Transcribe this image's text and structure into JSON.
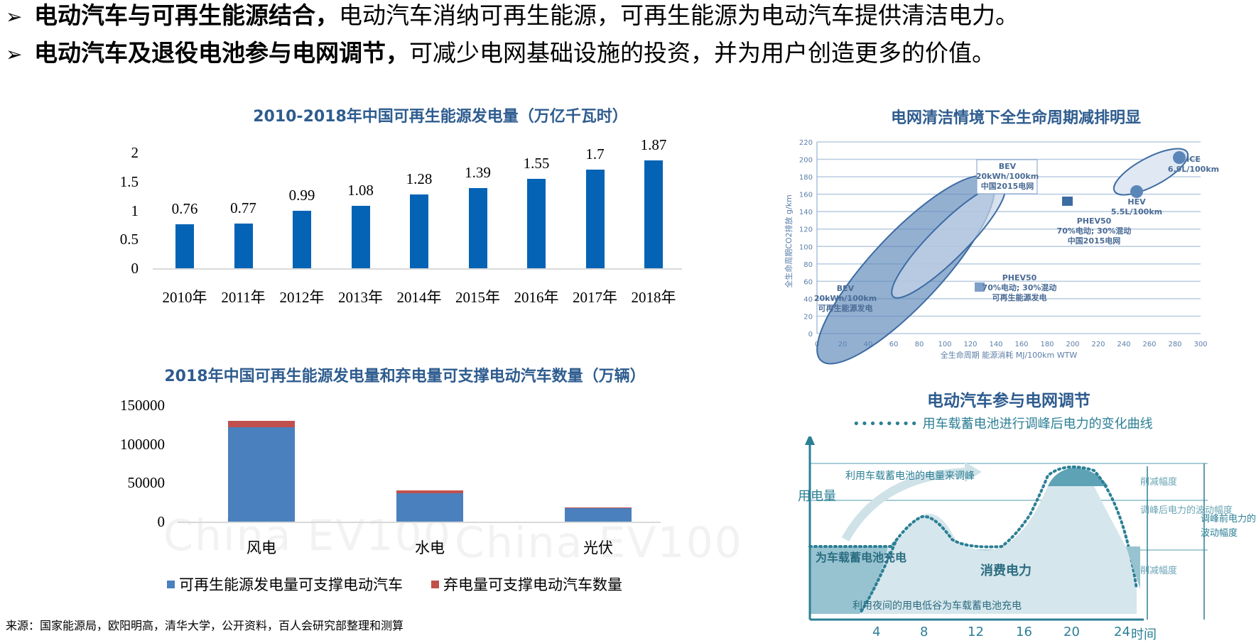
{
  "bullets": [
    {
      "bold": "电动汽车与可再生能源结合，",
      "text": "电动汽车消纳可再生能源，可再生能源为电动汽车提供清洁电力。",
      "marker": "➢"
    },
    {
      "bold": "电动汽车及退役电池参与电网调节，",
      "text": "可减少电网基础设施的投资，并为用户创造更多的价值。",
      "marker": "➢"
    }
  ],
  "watermark": "China EV100",
  "source": "来源：国家能源局，欧阳明高，清华大学，公开资料，百人会研究部整理和测算",
  "colors": {
    "title_blue": "#2e5c8f",
    "bar_blue": "#0563b5",
    "stack_blue": "#4a80bd",
    "stack_red": "#c0504d",
    "diagram_teal": "#2b7f95"
  },
  "chart_data": [
    {
      "type": "bar",
      "title": "2010-2018年中国可再生能源发电量（万亿千瓦时）",
      "categories": [
        "2010年",
        "2011年",
        "2012年",
        "2013年",
        "2014年",
        "2015年",
        "2016年",
        "2017年",
        "2018年"
      ],
      "values": [
        0.76,
        0.77,
        0.99,
        1.08,
        1.28,
        1.39,
        1.55,
        1.7,
        1.87
      ],
      "value_labels": [
        "0.76",
        "0.77",
        "0.99",
        "1.08",
        "1.28",
        "1.39",
        "1.55",
        "1.7",
        "1.87"
      ],
      "yticks": [
        "0",
        "0.5",
        "1",
        "1.5",
        "2"
      ],
      "ylim": [
        0,
        2
      ],
      "xlabel": "",
      "ylabel": ""
    },
    {
      "type": "bar",
      "stacked": true,
      "title": "2018年中国可再生能源发电量和弃电量可支撑电动汽车数量（万辆）",
      "categories": [
        "风电",
        "水电",
        "光伏"
      ],
      "series": [
        {
          "name": "可再生能源发电量可支撑电动汽车",
          "values": [
            122000,
            37000,
            17500
          ]
        },
        {
          "name": "弃电量可支撑电动汽车数量",
          "values": [
            8000,
            3000,
            1000
          ]
        }
      ],
      "yticks": [
        "0",
        "50000",
        "100000",
        "150000"
      ],
      "ylim": [
        0,
        150000
      ],
      "legend_position": "bottom"
    },
    {
      "type": "scatter",
      "title": "电网清洁情境下全生命周期减排明显",
      "xlabel": "全生命周期 能源消耗 MJ/100km WTW",
      "ylabel": "全生命周期CO2排放 g/km",
      "xticks": [
        "0",
        "20",
        "40",
        "60",
        "80",
        "100",
        "120",
        "140",
        "160",
        "180",
        "200",
        "220",
        "240",
        "260",
        "280",
        "300"
      ],
      "yticks": [
        "0",
        "20",
        "40",
        "60",
        "80",
        "100",
        "120",
        "140",
        "160",
        "180",
        "200",
        "220"
      ],
      "xlim": [
        0,
        300
      ],
      "ylim": [
        0,
        220
      ],
      "annotations": [
        {
          "lines": [
            "BEV",
            "20kWh/100km",
            "可再生能源发电"
          ],
          "x": 80,
          "y": 5
        },
        {
          "lines": [
            "BEV",
            "20kWh/100km",
            "中国2015电网"
          ],
          "x": 175,
          "y": 150
        },
        {
          "lines": [
            "PHEV50",
            "70%电动; 30%混动",
            "可再生能源发电"
          ],
          "x": 120,
          "y": 55
        },
        {
          "lines": [
            "PHEV50",
            "70%电动; 30%混动",
            "中国2015电网"
          ],
          "x": 192,
          "y": 152
        },
        {
          "lines": [
            "HEV",
            "5.5L/100km"
          ],
          "x": 225,
          "y": 163
        },
        {
          "lines": [
            "ICE",
            "6.9L/100km"
          ],
          "x": 275,
          "y": 200
        }
      ]
    },
    {
      "type": "area",
      "title": "电动汽车参与电网调节",
      "legend": "用车载蓄电池进行调峰后电力的变化曲线",
      "ylabel": "用电量",
      "xlabel": "时间",
      "xticks": [
        "4",
        "8",
        "12",
        "16",
        "20",
        "24"
      ],
      "labels": {
        "shift": "利用车载蓄电池的电量来调峰",
        "charge": "为车载蓄电池充电",
        "consume": "消费电力",
        "valley": "利用夜间的用电低谷为车载蓄电池充电",
        "cut_top": "削减幅度",
        "after": "调峰后电力的波动幅度",
        "cut_bottom": "削减幅度",
        "before": "调峰前电力的波动幅度"
      }
    }
  ]
}
